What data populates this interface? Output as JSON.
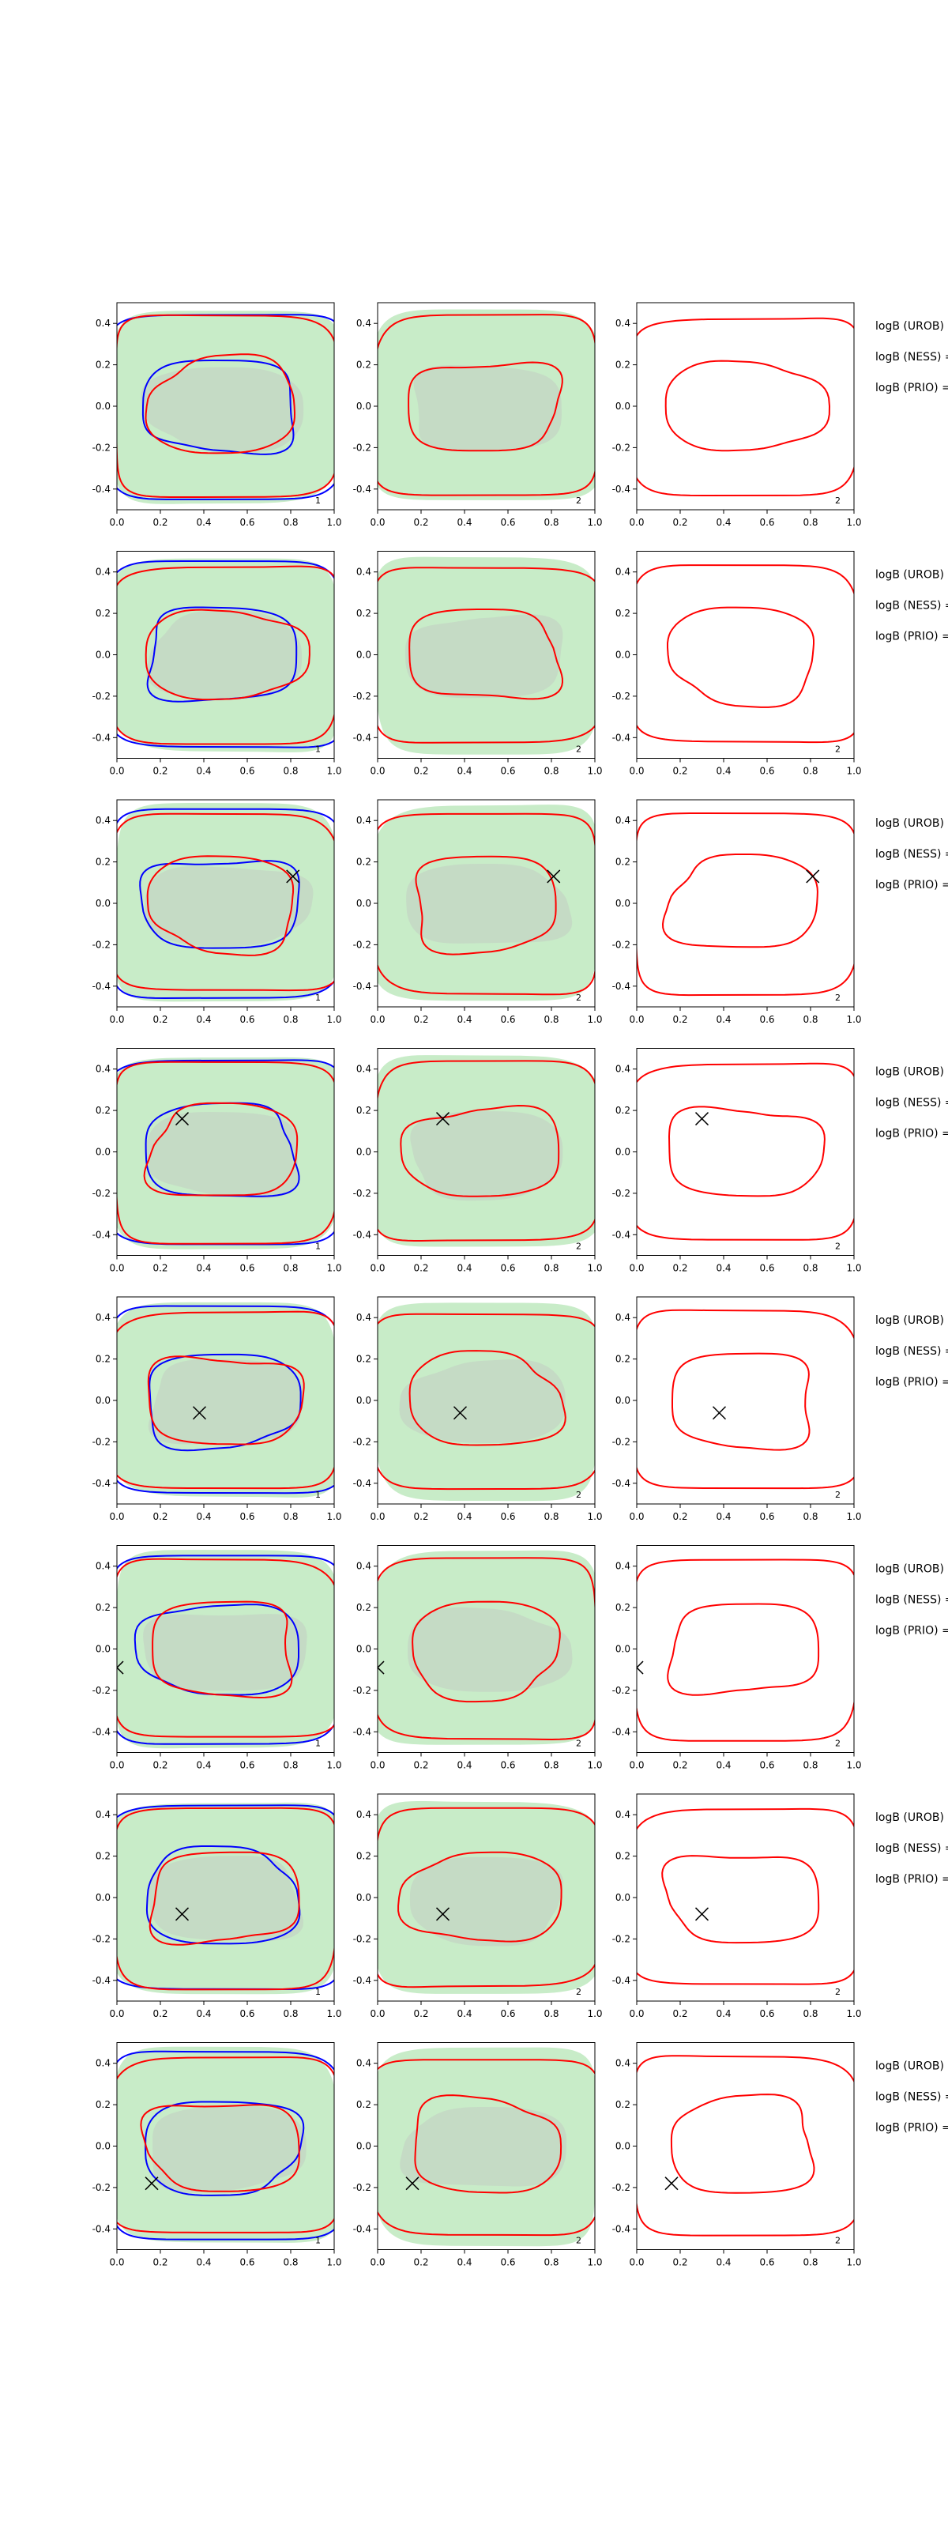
{
  "chart_data": {
    "type": "contour-grid",
    "rows": 8,
    "columns": 3,
    "xlim": [
      0,
      1
    ],
    "ylim": [
      -0.5,
      0.5
    ],
    "xticks": [
      "0.0",
      "0.2",
      "0.4",
      "0.6",
      "0.8",
      "1.0"
    ],
    "yticks": [
      "-0.4",
      "-0.2",
      "0.0",
      "0.2",
      "0.4"
    ],
    "panel_labels": [
      "1",
      "2",
      "2"
    ],
    "row_labels": [
      "logB (UROB) =",
      "logB (NESS) =",
      "logB (PRIO) ="
    ],
    "colors": {
      "outer_fill": "#c8ecc8",
      "inner_fill": "#c4d8c4",
      "red_contour": "#ff0000",
      "blue_contour": "#0000ff",
      "marker": "#000000"
    },
    "markers": [
      null,
      null,
      {
        "x": 0.81,
        "y": 0.13
      },
      {
        "x": 0.3,
        "y": 0.16
      },
      {
        "x": 0.38,
        "y": -0.06
      },
      {
        "x": 0.0,
        "y": -0.09
      },
      {
        "x": 0.3,
        "y": -0.08
      },
      {
        "x": 0.16,
        "y": -0.18
      }
    ]
  }
}
